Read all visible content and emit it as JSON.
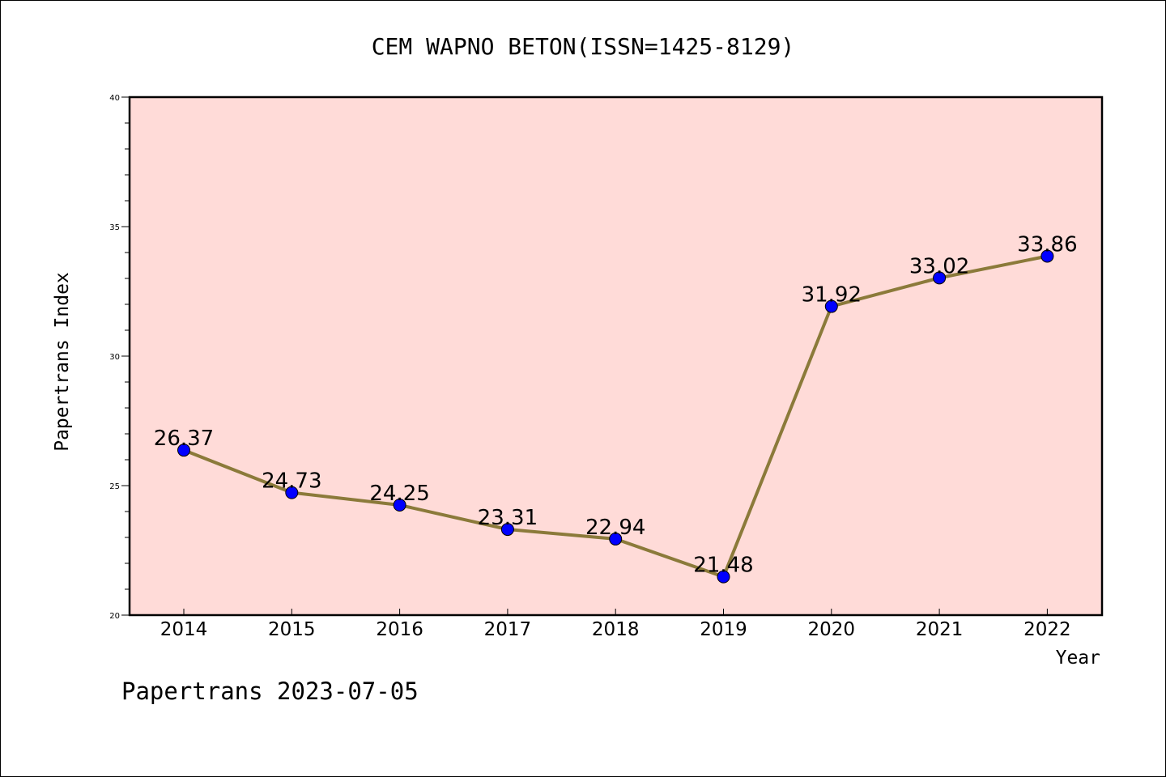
{
  "chart_data": {
    "type": "line",
    "title": "CEM WAPNO BETON(ISSN=1425-8129)",
    "xlabel": "Year",
    "ylabel": "Papertrans Index",
    "categories": [
      "2014",
      "2015",
      "2016",
      "2017",
      "2018",
      "2019",
      "2020",
      "2021",
      "2022"
    ],
    "series": [
      {
        "values": [
          26.37,
          24.73,
          24.25,
          23.31,
          22.94,
          21.48,
          31.92,
          33.02,
          33.86
        ],
        "data_labels": [
          "26.37",
          "24.73",
          "24.25",
          "23.31",
          "22.94",
          "21.48",
          "31.92",
          "33.02",
          "33.86"
        ]
      }
    ],
    "ylim": [
      20,
      40
    ],
    "yticks": [
      "20",
      "25",
      "30",
      "35",
      "40"
    ],
    "grid": false,
    "colors": {
      "plot_background": "#ffdbd8",
      "line": "#8b7a3a",
      "marker": "#0000ff"
    }
  },
  "footer": {
    "text": "Papertrans 2023-07-05"
  }
}
